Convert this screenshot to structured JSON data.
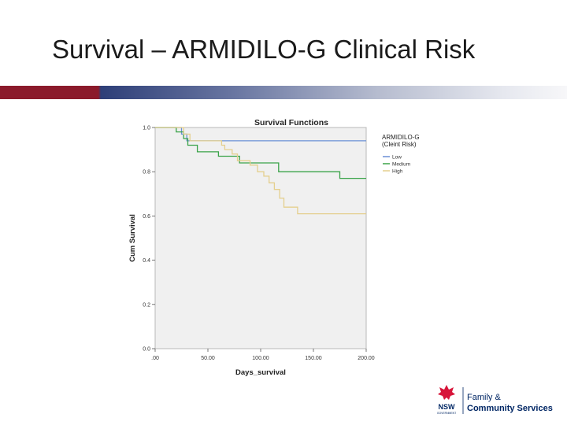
{
  "slide": {
    "title": "Survival – ARMIDILO-G Clinical Risk"
  },
  "colors": {
    "title_bar_left": "#8b1a2b",
    "title_bar_right": "#2e3f78",
    "plot_background": "#f0f0f0",
    "low": "#6a8fd6",
    "medium": "#3aa349",
    "high": "#e4cf8e",
    "logo_red": "#d7153a",
    "logo_navy": "#002664"
  },
  "chart_data": {
    "type": "line",
    "title": "Survival Functions",
    "xlabel": "Days_survival",
    "ylabel": "Cum Survival",
    "xlim": [
      0,
      200
    ],
    "ylim": [
      0,
      1.0
    ],
    "x_ticks": [
      ".00",
      "50.00",
      "100.00",
      "150.00",
      "200.00"
    ],
    "y_ticks": [
      "0.0",
      "0.2",
      "0.4",
      "0.6",
      "0.8",
      "1.0"
    ],
    "x_tick_values": [
      0,
      50,
      100,
      150,
      200
    ],
    "y_tick_values": [
      0,
      0.2,
      0.4,
      0.6,
      0.8,
      1.0
    ],
    "grid": false,
    "legend_title": "ARMIDILO-G (Cleint Risk)",
    "legend_position": "right",
    "series": [
      {
        "name": "Low",
        "color": "#6a8fd6",
        "points": [
          [
            0,
            1.0
          ],
          [
            25,
            1.0
          ],
          [
            25,
            0.97
          ],
          [
            30,
            0.97
          ],
          [
            30,
            0.94
          ],
          [
            200,
            0.94
          ]
        ]
      },
      {
        "name": "Medium",
        "color": "#3aa349",
        "points": [
          [
            0,
            1.0
          ],
          [
            20,
            1.0
          ],
          [
            20,
            0.98
          ],
          [
            27,
            0.98
          ],
          [
            27,
            0.95
          ],
          [
            31,
            0.95
          ],
          [
            31,
            0.92
          ],
          [
            40,
            0.92
          ],
          [
            40,
            0.89
          ],
          [
            60,
            0.89
          ],
          [
            60,
            0.87
          ],
          [
            80,
            0.87
          ],
          [
            80,
            0.84
          ],
          [
            117,
            0.84
          ],
          [
            117,
            0.8
          ],
          [
            175,
            0.8
          ],
          [
            175,
            0.77
          ],
          [
            200,
            0.77
          ]
        ]
      },
      {
        "name": "High",
        "color": "#e4cf8e",
        "points": [
          [
            0,
            1.0
          ],
          [
            27,
            1.0
          ],
          [
            27,
            0.97
          ],
          [
            33,
            0.97
          ],
          [
            33,
            0.94
          ],
          [
            63,
            0.94
          ],
          [
            63,
            0.92
          ],
          [
            66,
            0.92
          ],
          [
            66,
            0.9
          ],
          [
            73,
            0.9
          ],
          [
            73,
            0.88
          ],
          [
            78,
            0.88
          ],
          [
            78,
            0.85
          ],
          [
            90,
            0.85
          ],
          [
            90,
            0.83
          ],
          [
            97,
            0.83
          ],
          [
            97,
            0.8
          ],
          [
            103,
            0.8
          ],
          [
            103,
            0.78
          ],
          [
            108,
            0.78
          ],
          [
            108,
            0.75
          ],
          [
            113,
            0.75
          ],
          [
            113,
            0.72
          ],
          [
            118,
            0.72
          ],
          [
            118,
            0.68
          ],
          [
            122,
            0.68
          ],
          [
            122,
            0.64
          ],
          [
            135,
            0.64
          ],
          [
            135,
            0.61
          ],
          [
            200,
            0.61
          ]
        ]
      }
    ]
  },
  "logo": {
    "agency_line1": "Family &",
    "agency_line2": "Community Services",
    "nsw": "NSW",
    "gov": "GOVERNMENT"
  }
}
